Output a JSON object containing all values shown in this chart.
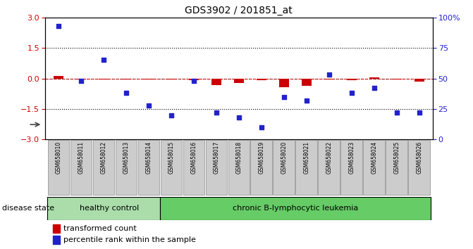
{
  "title": "GDS3902 / 201851_at",
  "samples": [
    "GSM658010",
    "GSM658011",
    "GSM658012",
    "GSM658013",
    "GSM658014",
    "GSM658015",
    "GSM658016",
    "GSM658017",
    "GSM658018",
    "GSM658019",
    "GSM658020",
    "GSM658021",
    "GSM658022",
    "GSM658023",
    "GSM658024",
    "GSM658025",
    "GSM658026"
  ],
  "transformed_count": [
    0.12,
    -0.04,
    -0.04,
    -0.06,
    -0.04,
    -0.04,
    -0.1,
    -0.32,
    -0.22,
    -0.08,
    -0.44,
    -0.38,
    -0.04,
    -0.09,
    0.04,
    -0.04,
    -0.16
  ],
  "percentile_rank": [
    93,
    48,
    65,
    38,
    28,
    20,
    48,
    22,
    18,
    10,
    35,
    32,
    53,
    38,
    42,
    22,
    22
  ],
  "left_ylim": [
    -3,
    3
  ],
  "right_ylim": [
    0,
    100
  ],
  "left_yticks": [
    -3,
    -1.5,
    0,
    1.5,
    3
  ],
  "right_yticks": [
    0,
    25,
    50,
    75,
    100
  ],
  "right_yticklabels": [
    "0",
    "25",
    "50",
    "75",
    "100%"
  ],
  "healthy_count": 5,
  "healthy_label": "healthy control",
  "disease_label": "chronic B-lymphocytic leukemia",
  "group_label": "disease state",
  "legend_red": "transformed count",
  "legend_blue": "percentile rank within the sample",
  "red_color": "#cc0000",
  "blue_color": "#2222cc",
  "healthy_bg": "#aaddaa",
  "disease_bg": "#66cc66",
  "xticklabel_bg": "#cccccc"
}
